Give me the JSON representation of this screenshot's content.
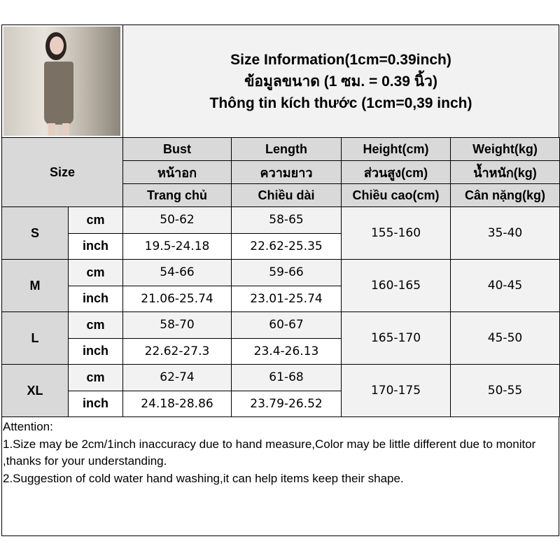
{
  "title": {
    "line1": "Size Information(1cm=0.39inch)",
    "line2": "ข้อมูลขนาด (1 ซม. = 0.39 นิ้ว)",
    "line3": "Thông tin kích thước (1cm=0,39 inch)"
  },
  "header": {
    "size": "Size",
    "columns": [
      {
        "en": "Bust",
        "th": "หน้าอก",
        "vi": "Trang chủ"
      },
      {
        "en": "Length",
        "th": "ความยาว",
        "vi": "Chiều dài"
      },
      {
        "en": "Height(cm)",
        "th": "ส่วนสูง(cm)",
        "vi": "Chiều cao(cm)"
      },
      {
        "en": "Weight(kg)",
        "th": "น้ำหนัก(kg)",
        "vi": "Cân nặng(kg)"
      }
    ]
  },
  "units": {
    "cm": "cm",
    "inch": "inch"
  },
  "rows": [
    {
      "size": "S",
      "bust_cm": "50-62",
      "length_cm": "58-65",
      "bust_in": "19.5-24.18",
      "length_in": "22.62-25.35",
      "height": "155-160",
      "weight": "35-40"
    },
    {
      "size": "M",
      "bust_cm": "54-66",
      "length_cm": "59-66",
      "bust_in": "21.06-25.74",
      "length_in": "23.01-25.74",
      "height": "160-165",
      "weight": "40-45"
    },
    {
      "size": "L",
      "bust_cm": "58-70",
      "length_cm": "60-67",
      "bust_in": "22.62-27.3",
      "length_in": "23.4-26.13",
      "height": "165-170",
      "weight": "45-50"
    },
    {
      "size": "XL",
      "bust_cm": "62-74",
      "length_cm": "61-68",
      "bust_in": "24.18-28.86",
      "length_in": "23.79-26.52",
      "height": "170-175",
      "weight": "50-55"
    }
  ],
  "notes": [
    "Attention:",
    "1.Size may be 2cm/1inch inaccuracy due to hand measure,Color may be little different due to monitor ,thanks for your understanding.",
    "2.Suggestion of cold water hand washing,it can help items keep their shape."
  ]
}
